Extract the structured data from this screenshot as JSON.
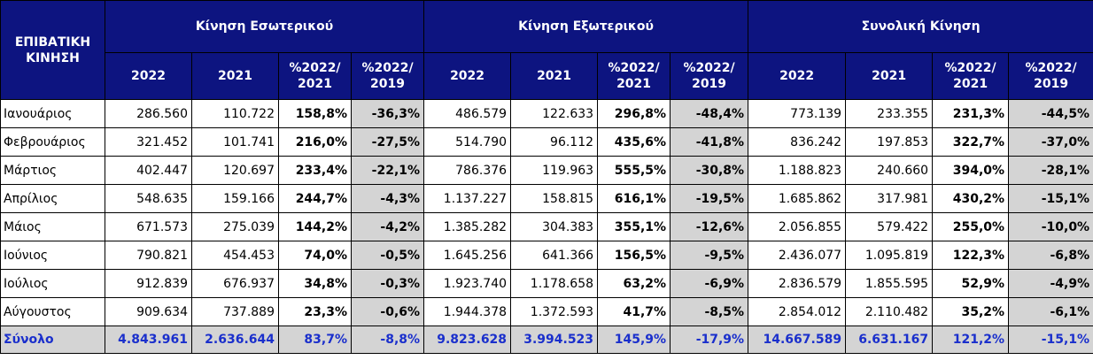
{
  "header": {
    "corner": "ΕΠΙΒΑΤΙΚΗ ΚΙΝΗΣΗ",
    "groups": [
      "Κίνηση Εσωτερικού",
      "Κίνηση Εξωτερικού",
      "Συνολική Κίνηση"
    ],
    "subcols": [
      "2022",
      "2021",
      "%2022/ 2021",
      "%2022/ 2019"
    ]
  },
  "rows": [
    {
      "month": "Ιανουάριος",
      "cells": [
        "286.560",
        "110.722",
        "158,8%",
        "-36,3%",
        "486.579",
        "122.633",
        "296,8%",
        "-48,4%",
        "773.139",
        "233.355",
        "231,3%",
        "-44,5%"
      ]
    },
    {
      "month": "Φεβρουάριος",
      "cells": [
        "321.452",
        "101.741",
        "216,0%",
        "-27,5%",
        "514.790",
        "96.112",
        "435,6%",
        "-41,8%",
        "836.242",
        "197.853",
        "322,7%",
        "-37,0%"
      ]
    },
    {
      "month": "Μάρτιος",
      "cells": [
        "402.447",
        "120.697",
        "233,4%",
        "-22,1%",
        "786.376",
        "119.963",
        "555,5%",
        "-30,8%",
        "1.188.823",
        "240.660",
        "394,0%",
        "-28,1%"
      ]
    },
    {
      "month": "Απρίλιος",
      "cells": [
        "548.635",
        "159.166",
        "244,7%",
        "-4,3%",
        "1.137.227",
        "158.815",
        "616,1%",
        "-19,5%",
        "1.685.862",
        "317.981",
        "430,2%",
        "-15,1%"
      ]
    },
    {
      "month": "Μάιος",
      "cells": [
        "671.573",
        "275.039",
        "144,2%",
        "-4,2%",
        "1.385.282",
        "304.383",
        "355,1%",
        "-12,6%",
        "2.056.855",
        "579.422",
        "255,0%",
        "-10,0%"
      ]
    },
    {
      "month": "Ιούνιος",
      "cells": [
        "790.821",
        "454.453",
        "74,0%",
        "-0,5%",
        "1.645.256",
        "641.366",
        "156,5%",
        "-9,5%",
        "2.436.077",
        "1.095.819",
        "122,3%",
        "-6,8%"
      ]
    },
    {
      "month": "Ιούλιος",
      "cells": [
        "912.839",
        "676.937",
        "34,8%",
        "-0,3%",
        "1.923.740",
        "1.178.658",
        "63,2%",
        "-6,9%",
        "2.836.579",
        "1.855.595",
        "52,9%",
        "-4,9%"
      ]
    },
    {
      "month": "Αύγουστος",
      "cells": [
        "909.634",
        "737.889",
        "23,3%",
        "-0,6%",
        "1.944.378",
        "1.372.593",
        "41,7%",
        "-8,5%",
        "2.854.012",
        "2.110.482",
        "35,2%",
        "-6,1%"
      ]
    }
  ],
  "total": {
    "month": "Σύνολο",
    "cells": [
      "4.843.961",
      "2.636.644",
      "83,7%",
      "-8,8%",
      "9.823.628",
      "3.994.523",
      "145,9%",
      "-17,9%",
      "14.667.589",
      "6.631.167",
      "121,2%",
      "-15,1%"
    ]
  },
  "colors": {
    "header_bg": "#0d1480",
    "header_text": "#ffffff",
    "shade": "#d4d4d4",
    "total_text": "#1a2fcc"
  }
}
